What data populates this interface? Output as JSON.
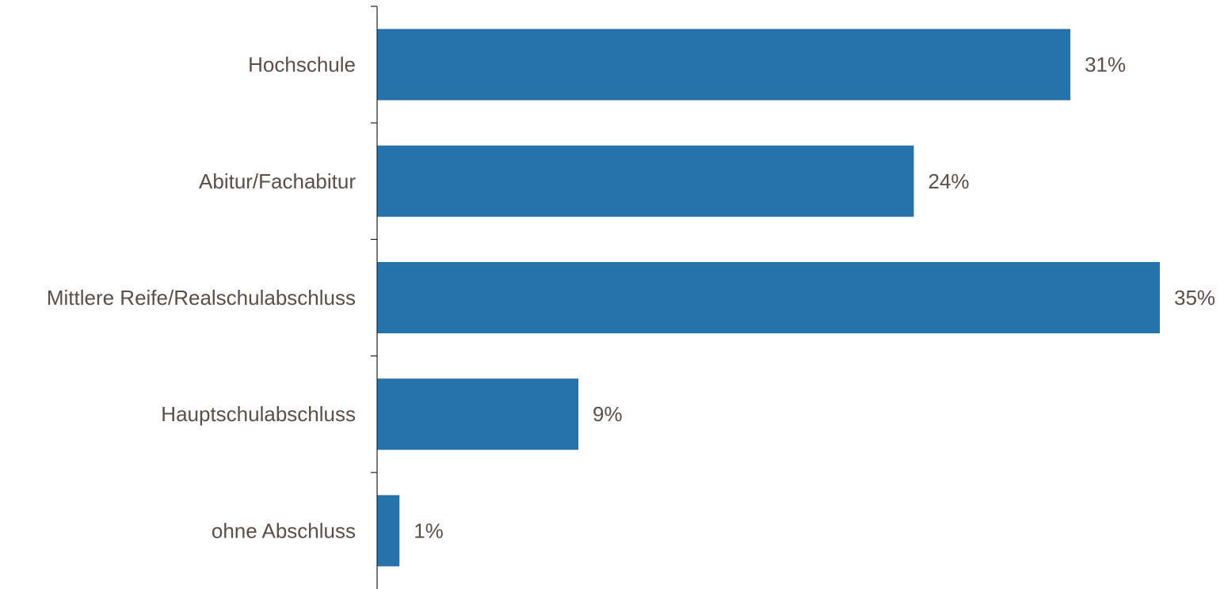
{
  "chart_data": {
    "type": "bar",
    "orientation": "horizontal",
    "categories": [
      "Hochschule",
      "Abitur/Fachabitur",
      "Mittlere Reife/Realschulabschluss",
      "Hauptschulabschluss",
      "ohne Abschluss"
    ],
    "values": [
      31,
      24,
      35,
      9,
      1
    ],
    "value_labels": [
      "31%",
      "24%",
      "35%",
      "9%",
      "1%"
    ],
    "unit": "%",
    "xlim": [
      0,
      35
    ],
    "grid": false,
    "legend": "none",
    "bar_color": "#2673ac",
    "label_color": "#5a4f48"
  }
}
